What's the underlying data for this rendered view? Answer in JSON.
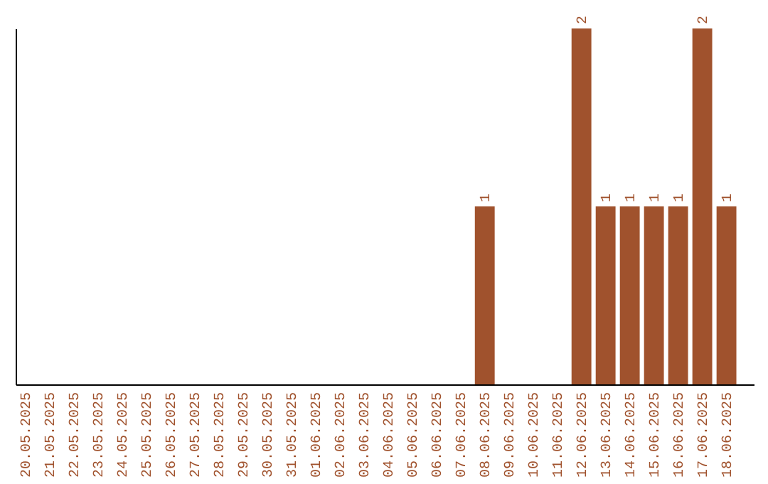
{
  "chart_data": {
    "type": "bar",
    "categories": [
      "20.05.2025",
      "21.05.2025",
      "22.05.2025",
      "23.05.2025",
      "24.05.2025",
      "25.05.2025",
      "26.05.2025",
      "27.05.2025",
      "28.05.2025",
      "29.05.2025",
      "30.05.2025",
      "31.05.2025",
      "01.06.2025",
      "02.06.2025",
      "03.06.2025",
      "04.06.2025",
      "05.06.2025",
      "06.06.2025",
      "07.06.2025",
      "08.06.2025",
      "09.06.2025",
      "10.06.2025",
      "11.06.2025",
      "12.06.2025",
      "13.06.2025",
      "14.06.2025",
      "15.06.2025",
      "16.06.2025",
      "17.06.2025",
      "18.06.2025"
    ],
    "values": [
      null,
      null,
      null,
      null,
      null,
      null,
      null,
      null,
      null,
      null,
      null,
      null,
      null,
      null,
      null,
      null,
      null,
      null,
      null,
      1,
      null,
      null,
      null,
      2,
      1,
      1,
      1,
      1,
      2,
      1
    ],
    "data_labels": true,
    "color": "#a0522d",
    "grid": false
  }
}
